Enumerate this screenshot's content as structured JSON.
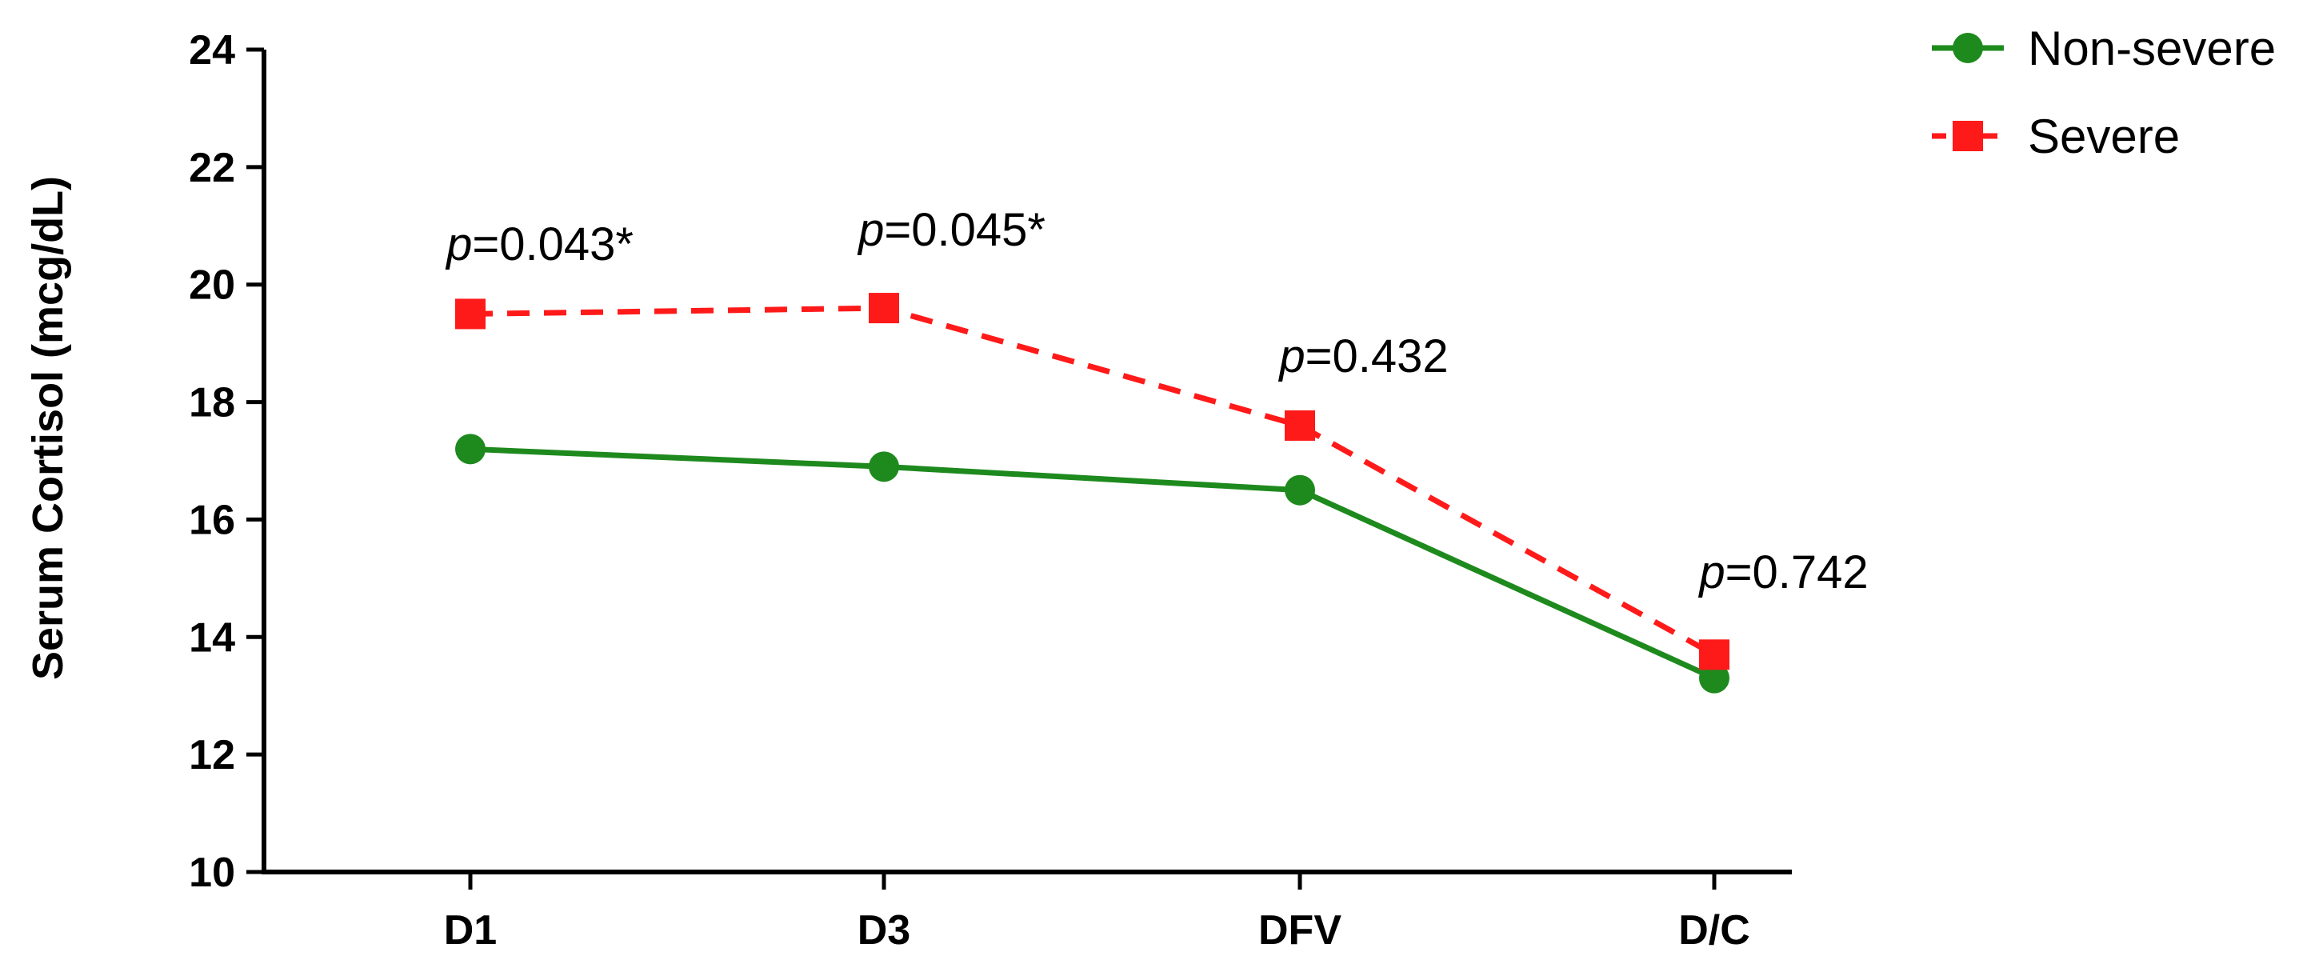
{
  "chart_data": {
    "type": "line",
    "title": "",
    "xlabel": "",
    "ylabel": "Serum Cortisol (mcg/dL)",
    "ylim": [
      10,
      24
    ],
    "yticks": [
      "10",
      "12",
      "14",
      "16",
      "18",
      "20",
      "22",
      "24"
    ],
    "categories": [
      "D1",
      "D3",
      "DFV",
      "D/C"
    ],
    "series": [
      {
        "name": "Non-severe",
        "values": [
          17.2,
          16.9,
          16.5,
          13.3
        ],
        "color": "#1e8a1e",
        "marker": "circle",
        "dash": "solid"
      },
      {
        "name": "Severe",
        "values": [
          19.5,
          19.6,
          17.6,
          13.7
        ],
        "color": "#ff1a1a",
        "marker": "square",
        "dash": "dashed"
      }
    ],
    "annotations": [
      {
        "category": "D1",
        "p": "p",
        "text": "=0.043*"
      },
      {
        "category": "D3",
        "p": "p",
        "text": "=0.045*"
      },
      {
        "category": "DFV",
        "p": "p",
        "text": "=0.432"
      },
      {
        "category": "D/C",
        "p": "p",
        "text": "=0.742"
      }
    ],
    "legend_position": "top-right",
    "grid": false
  }
}
